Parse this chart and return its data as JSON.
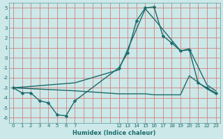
{
  "xlabel": "Humidex (Indice chaleur)",
  "bg_color": "#cce8e8",
  "grid_color": "#d08080",
  "line_color": "#1a6b6b",
  "xlim": [
    -0.5,
    23.5
  ],
  "ylim": [
    -6.5,
    5.5
  ],
  "xticks": [
    0,
    1,
    2,
    3,
    4,
    5,
    6,
    7,
    12,
    13,
    14,
    15,
    16,
    17,
    18,
    19,
    20,
    21,
    22,
    23
  ],
  "yticks": [
    -6,
    -5,
    -4,
    -3,
    -2,
    -1,
    0,
    1,
    2,
    3,
    4,
    5
  ],
  "line1_x": [
    0,
    1,
    2,
    3,
    4,
    5,
    6,
    7,
    12,
    13,
    14,
    15,
    16,
    17,
    18,
    19,
    20,
    21,
    22,
    23
  ],
  "line1_y": [
    -3.0,
    -3.5,
    -3.5,
    -4.3,
    -4.5,
    -5.7,
    -5.8,
    -4.3,
    -1.0,
    0.5,
    3.7,
    5.0,
    5.1,
    2.2,
    1.5,
    0.7,
    0.8,
    -2.5,
    -3.0,
    -3.5
  ],
  "line2_x": [
    0,
    7,
    12,
    15,
    16,
    19,
    20,
    22,
    23
  ],
  "line2_y": [
    -3.0,
    -2.5,
    -1.2,
    4.9,
    3.9,
    0.7,
    0.9,
    -2.7,
    -3.3
  ],
  "line3_x": [
    0,
    7,
    12,
    15,
    16,
    19,
    20,
    22,
    23
  ],
  "line3_y": [
    -3.0,
    -3.3,
    -3.6,
    -3.6,
    -3.7,
    -3.7,
    -1.8,
    -3.1,
    -3.6
  ],
  "xlabel_fontsize": 6,
  "tick_fontsize": 5,
  "linewidth": 1.0,
  "markersize": 2.5
}
